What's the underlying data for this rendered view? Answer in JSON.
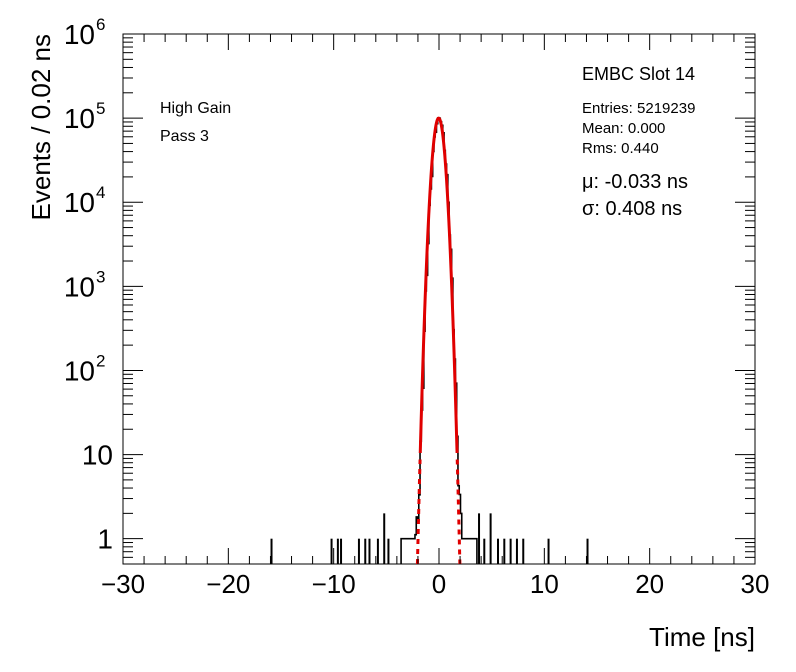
{
  "chart_data": {
    "type": "histogram",
    "title": "EMBC Slot 14",
    "xlabel": "Time [ns]",
    "ylabel": "Events / 0.02 ns",
    "xlim": [
      -30,
      30
    ],
    "ylim": [
      0.5,
      1000000
    ],
    "y_scale": "log",
    "grid": false,
    "x_ticks": [
      -30,
      -20,
      -10,
      0,
      10,
      20,
      30
    ],
    "x_tick_labels": [
      "−30",
      "−20",
      "−10",
      "0",
      "10",
      "20",
      "30"
    ],
    "y_ticks": [
      1,
      10,
      100,
      1000,
      10000,
      100000,
      1000000
    ],
    "y_tick_labels": [
      {
        "base": "1",
        "exp": ""
      },
      {
        "base": "10",
        "exp": ""
      },
      {
        "base": "10",
        "exp": "2"
      },
      {
        "base": "10",
        "exp": "3"
      },
      {
        "base": "10",
        "exp": "4"
      },
      {
        "base": "10",
        "exp": "5"
      },
      {
        "base": "10",
        "exp": "6"
      }
    ],
    "annotations": {
      "gain": "High Gain",
      "pass": "Pass 3",
      "entries": "Entries: 5219239",
      "mean": "Mean: 0.000",
      "rms": "Rms: 0.440",
      "mu": "μ: -0.033 ns",
      "sigma": "σ: 0.408 ns"
    },
    "fit": {
      "function": "gaussian",
      "amplitude": 100000,
      "mu": -0.033,
      "sigma": 0.408,
      "color": "#e00000"
    },
    "histogram_color": "#000000",
    "outlier_bins": [
      {
        "x": -15.9,
        "y": 1
      },
      {
        "x": -10.2,
        "y": 1
      },
      {
        "x": -9.6,
        "y": 1
      },
      {
        "x": -9.3,
        "y": 1
      },
      {
        "x": -7.6,
        "y": 1
      },
      {
        "x": -7.0,
        "y": 1
      },
      {
        "x": -6.6,
        "y": 1
      },
      {
        "x": -5.8,
        "y": 1
      },
      {
        "x": -5.2,
        "y": 2
      },
      {
        "x": -4.8,
        "y": 1
      },
      {
        "x": 3.8,
        "y": 2
      },
      {
        "x": 4.3,
        "y": 1
      },
      {
        "x": 4.9,
        "y": 2
      },
      {
        "x": 5.6,
        "y": 1
      },
      {
        "x": 6.2,
        "y": 1
      },
      {
        "x": 6.8,
        "y": 1
      },
      {
        "x": 7.4,
        "y": 1
      },
      {
        "x": 8.0,
        "y": 1
      },
      {
        "x": 10.4,
        "y": 1
      },
      {
        "x": 14.1,
        "y": 1
      }
    ]
  }
}
